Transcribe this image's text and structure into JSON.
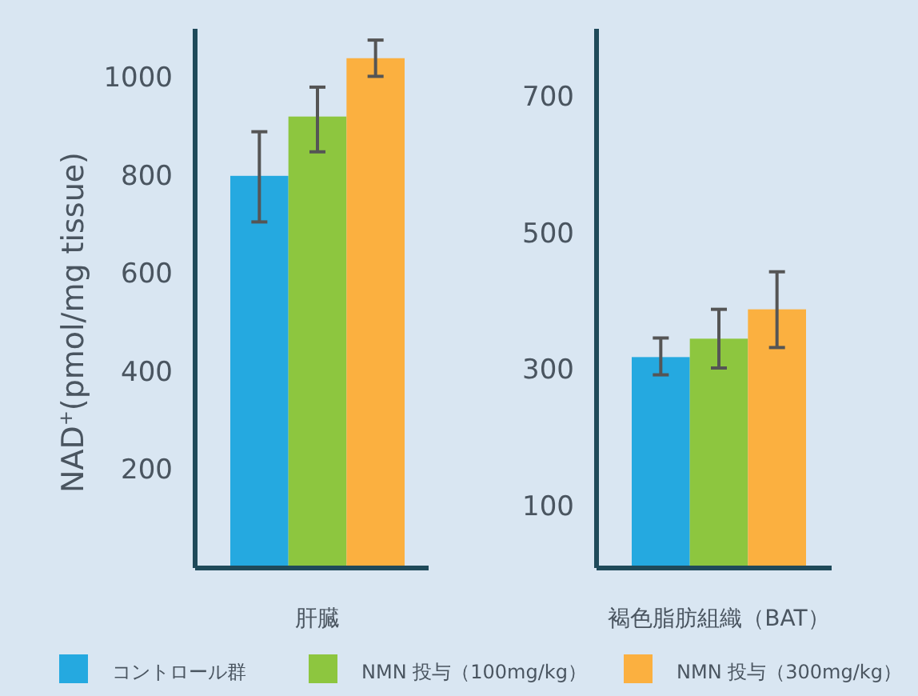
{
  "chart_data": [
    {
      "type": "bar",
      "ylabel": "NAD$^{+}$(pmol/mg tissue)",
      "categories": [
        "肝臓"
      ],
      "ylim": [
        0,
        1100
      ],
      "yticks": [
        200,
        400,
        600,
        800,
        1000
      ],
      "legend": "bottom",
      "grid": false,
      "series": [
        {
          "name": "コントロール群",
          "color": "#25a9e0",
          "values": [
            800
          ],
          "errors": [
            [
              706,
              890
            ]
          ]
        },
        {
          "name": "NMN 投与（100mg/kg）",
          "color": "#8dc63f",
          "values": [
            921
          ],
          "errors": [
            [
              849,
              981
            ]
          ]
        },
        {
          "name": "NMN 投与（300mg/kg）",
          "color": "#fbb040",
          "values": [
            1040
          ],
          "errors": [
            [
              1003,
              1077
            ]
          ]
        }
      ]
    },
    {
      "type": "bar",
      "categories": [
        "褐色脂肪組織（BAT）"
      ],
      "ylim": [
        10,
        800
      ],
      "yticks": [
        100,
        300,
        500,
        700
      ],
      "grid": false,
      "series": [
        {
          "color": "#25a9e0",
          "values": [
            319
          ],
          "errors": [
            [
              293,
              347
            ]
          ]
        },
        {
          "color": "#8dc63f",
          "values": [
            346
          ],
          "errors": [
            [
              303,
              389
            ]
          ]
        },
        {
          "color": "#fbb040",
          "values": [
            389
          ],
          "errors": [
            [
              333,
              444
            ]
          ]
        }
      ]
    }
  ]
}
